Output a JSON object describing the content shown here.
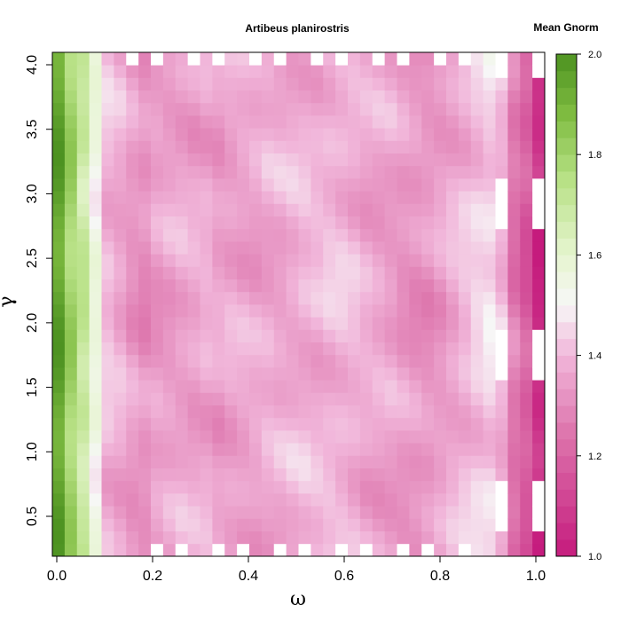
{
  "chart_data": {
    "type": "heatmap",
    "title": "Artibeus planirostris",
    "xlabel": "ω",
    "ylabel": "γ",
    "xlim": [
      0.0,
      1.0
    ],
    "ylim": [
      0.2,
      4.0
    ],
    "x_ticks": [
      "0.0",
      "0.2",
      "0.4",
      "0.6",
      "0.8",
      "1.0"
    ],
    "y_ticks": [
      "0.5",
      "1.0",
      "1.5",
      "2.0",
      "2.5",
      "3.0",
      "3.5",
      "4.0"
    ],
    "colorbar": {
      "title": "Mean Gnorm",
      "range": [
        1.0,
        2.0
      ],
      "ticks": [
        "1.0",
        "1.2",
        "1.4",
        "1.6",
        "1.8",
        "2.0"
      ],
      "low_color": "#c51b7d",
      "mid_color": "#f7f7f7",
      "high_color": "#4d9221"
    },
    "x_bins": 40,
    "y_bins": 40,
    "column_profile": [
      1.95,
      1.8,
      1.7,
      1.55,
      1.4,
      1.37,
      1.33,
      1.31,
      1.34,
      1.35,
      1.36,
      1.36,
      1.37,
      1.35,
      1.36,
      1.36,
      1.36,
      1.37,
      1.37,
      1.38,
      1.39,
      1.39,
      1.4,
      1.4,
      1.39,
      1.37,
      1.36,
      1.35,
      1.33,
      1.32,
      1.32,
      1.34,
      1.37,
      1.4,
      1.43,
      1.45,
      1.4,
      1.25,
      1.18,
      1.05
    ],
    "gap_columns": [
      36,
      39
    ]
  }
}
